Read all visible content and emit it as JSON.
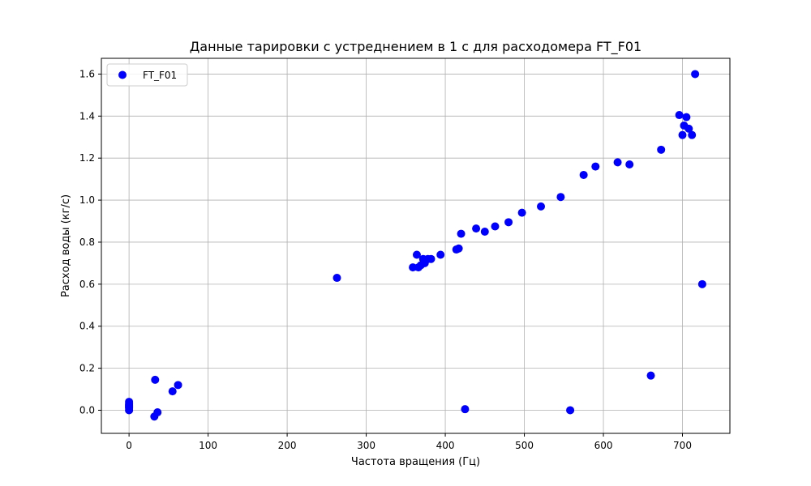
{
  "chart_data": {
    "type": "scatter",
    "title": "Данные тарировки с устреднением в 1 с для расходомера FT_F01",
    "xlabel": "Частота вращения (Гц)",
    "ylabel": "Расход воды (кг/с)",
    "xlim": [
      -35,
      760
    ],
    "ylim": [
      -0.11,
      1.675
    ],
    "xticks": [
      0,
      100,
      200,
      300,
      400,
      500,
      600,
      700
    ],
    "yticks": [
      0.0,
      0.2,
      0.4,
      0.6,
      0.8,
      1.0,
      1.2,
      1.4,
      1.6
    ],
    "ytick_labels": [
      "0.0",
      "0.2",
      "0.4",
      "0.6",
      "0.8",
      "1.0",
      "1.2",
      "1.4",
      "1.6"
    ],
    "grid": true,
    "legend": {
      "position": "top-left"
    },
    "series": [
      {
        "name": "FT_F01",
        "color": "#0000ff",
        "points": [
          [
            0,
            0.04
          ],
          [
            0,
            0.03
          ],
          [
            0,
            0.02
          ],
          [
            0,
            0.01
          ],
          [
            0,
            0.0
          ],
          [
            0,
            0.025
          ],
          [
            0,
            0.015
          ],
          [
            33,
            0.145
          ],
          [
            32,
            -0.03
          ],
          [
            36,
            -0.01
          ],
          [
            55,
            0.09
          ],
          [
            62,
            0.12
          ],
          [
            263,
            0.63
          ],
          [
            359,
            0.68
          ],
          [
            364,
            0.74
          ],
          [
            366,
            0.68
          ],
          [
            369,
            0.69
          ],
          [
            372,
            0.72
          ],
          [
            374,
            0.7
          ],
          [
            378,
            0.72
          ],
          [
            382,
            0.72
          ],
          [
            394,
            0.74
          ],
          [
            414,
            0.765
          ],
          [
            417,
            0.77
          ],
          [
            420,
            0.84
          ],
          [
            439,
            0.865
          ],
          [
            450,
            0.85
          ],
          [
            463,
            0.875
          ],
          [
            480,
            0.895
          ],
          [
            497,
            0.94
          ],
          [
            521,
            0.97
          ],
          [
            546,
            1.015
          ],
          [
            575,
            1.12
          ],
          [
            590,
            1.16
          ],
          [
            618,
            1.18
          ],
          [
            633,
            1.17
          ],
          [
            673,
            1.24
          ],
          [
            696,
            1.405
          ],
          [
            700,
            1.31
          ],
          [
            702,
            1.355
          ],
          [
            705,
            1.395
          ],
          [
            708,
            1.34
          ],
          [
            712,
            1.31
          ],
          [
            716,
            1.6
          ],
          [
            725,
            0.6
          ],
          [
            425,
            0.005
          ],
          [
            558,
            0.0
          ],
          [
            660,
            0.165
          ]
        ]
      }
    ]
  }
}
